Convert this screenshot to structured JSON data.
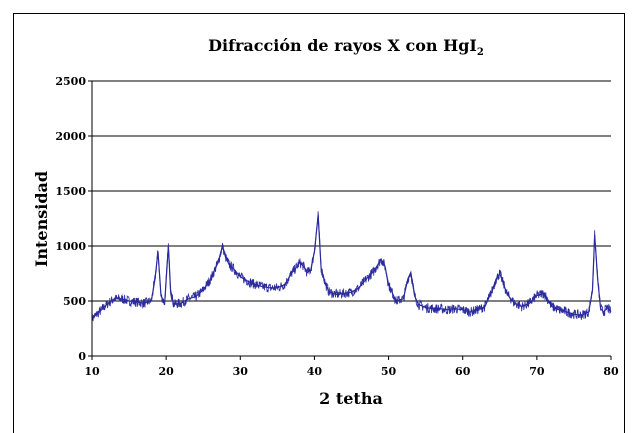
{
  "chart_data": {
    "type": "line",
    "title": "Difracción de rayos X con HgI",
    "title_subscript": "2",
    "xlabel": "2 tetha",
    "ylabel": "Intensidad",
    "xlim": [
      10,
      80
    ],
    "ylim": [
      0,
      2500
    ],
    "x_ticks": [
      "10",
      "20",
      "30",
      "40",
      "50",
      "60",
      "70",
      "80"
    ],
    "y_ticks": [
      "0",
      "500",
      "1000",
      "1500",
      "2000",
      "2500"
    ],
    "grid": "horizontal",
    "legend": "none",
    "series_color": "#2B2B9E",
    "series": [
      {
        "x": [
          10,
          11,
          12,
          13,
          14,
          15,
          16,
          17,
          18,
          18.5,
          18.9,
          19.3,
          19.8,
          20.3,
          20.6,
          21,
          22,
          23,
          24,
          25,
          26,
          27,
          27.6,
          28,
          28.5,
          29,
          30,
          31,
          32,
          33,
          34,
          35,
          36,
          37,
          37.5,
          38,
          38.5,
          39,
          39.5,
          40,
          40.5,
          40.9,
          41.5,
          42,
          43,
          44,
          45,
          46,
          47,
          48,
          49,
          49.5,
          50,
          51,
          52,
          52.6,
          53,
          53.5,
          54,
          55,
          56,
          57,
          58,
          59,
          60,
          61,
          62,
          63,
          64,
          64.5,
          65,
          66,
          67,
          68,
          69,
          70,
          71,
          72,
          73,
          74,
          75,
          76,
          77,
          77.5,
          77.8,
          78.2,
          78.6,
          79,
          79.5,
          80
        ],
        "y": [
          340,
          400,
          470,
          520,
          520,
          500,
          490,
          480,
          500,
          700,
          950,
          550,
          480,
          1000,
          600,
          470,
          480,
          520,
          540,
          600,
          700,
          850,
          1000,
          900,
          830,
          800,
          720,
          680,
          650,
          630,
          620,
          620,
          650,
          760,
          800,
          850,
          820,
          760,
          780,
          950,
          1280,
          800,
          650,
          580,
          560,
          570,
          580,
          620,
          700,
          770,
          880,
          820,
          650,
          500,
          520,
          700,
          760,
          550,
          470,
          440,
          430,
          430,
          420,
          430,
          420,
          400,
          420,
          450,
          600,
          700,
          750,
          560,
          480,
          450,
          480,
          550,
          570,
          450,
          420,
          400,
          380,
          370,
          400,
          600,
          1100,
          700,
          430,
          400,
          440,
          400
        ]
      }
    ]
  }
}
